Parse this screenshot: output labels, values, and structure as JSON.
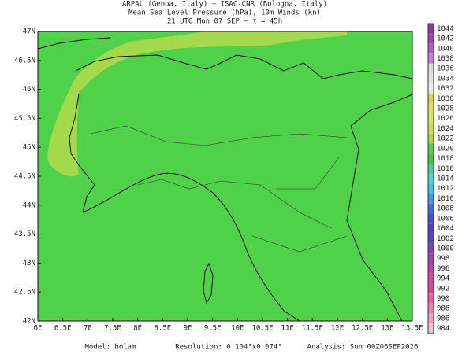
{
  "header": {
    "lines": [
      "ARPAL (Genoa, Italy)  –  ISAC-CNR (Bologna, Italy)",
      "Mean Sea Level Pressure (hPa), 10m Winds (kn)",
      "21 UTC Mon 07 SEP  –  τ = 45h"
    ]
  },
  "map": {
    "lat_labels": [
      "47N",
      "46.5N",
      "46N",
      "45.5N",
      "45N",
      "44.5N",
      "44N",
      "43.5N",
      "43N",
      "42.5N",
      "42N"
    ],
    "lon_labels": [
      "6E",
      "6.5E",
      "7E",
      "7.5E",
      "8E",
      "8.5E",
      "9E",
      "9.5E",
      "10E",
      "10.5E",
      "11E",
      "11.5E",
      "12E",
      "12.5E",
      "13E",
      "13.5E"
    ]
  },
  "colorbar": {
    "levels": [
      1044,
      1042,
      1040,
      1038,
      1036,
      1034,
      1032,
      1030,
      1028,
      1026,
      1024,
      1022,
      1020,
      1018,
      1016,
      1014,
      1012,
      1010,
      1008,
      1006,
      1004,
      1002,
      1000,
      998,
      996,
      994,
      992,
      990,
      988,
      986,
      984
    ],
    "colors": [
      "#9b2fb0",
      "#a53cc0",
      "#b25ad0",
      "#c07ce0",
      "#d9d9d9",
      "#e0e0e0",
      "#e8e8e8",
      "#d8d05a",
      "#e0e05a",
      "#d6e05a",
      "#c8e04a",
      "#a6d84a",
      "#4fd14a",
      "#3fc83f",
      "#40d0a0",
      "#40d8d8",
      "#40c0e8",
      "#4098e8",
      "#4070e8",
      "#4050e0",
      "#5040d0",
      "#6040c8",
      "#8040c0",
      "#a040b8",
      "#c040b0",
      "#e040a0",
      "#e84090",
      "#f060a0",
      "#f080b0",
      "#f0a0c0",
      "#f0c0d0"
    ]
  },
  "footer": {
    "model": "Model: bolam",
    "resolution": "Resolution: 0.104°x0.074°",
    "analysis": "Analysis: Sun 00Z06SEP2026"
  }
}
